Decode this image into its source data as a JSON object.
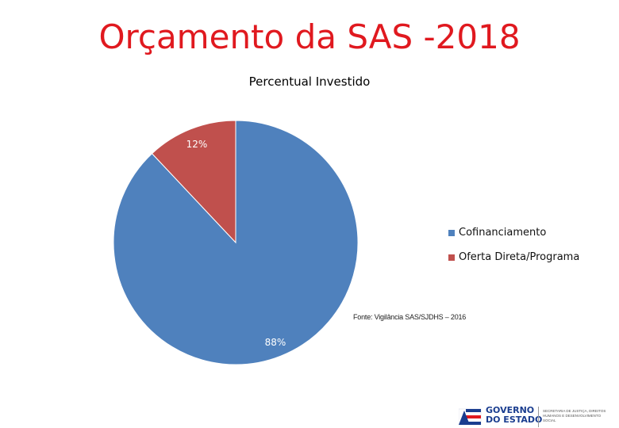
{
  "slide": {
    "title": "Orçamento da SAS -2018"
  },
  "chart_data": {
    "type": "pie",
    "title": "Percentual Investido",
    "categories": [
      "Cofinanciamento",
      "Oferta Direta/Programa"
    ],
    "values": [
      88,
      12
    ],
    "data_labels": [
      "88%",
      "12%"
    ],
    "colors": [
      "#4f81bd",
      "#c0504d"
    ],
    "legend": "right"
  },
  "source": {
    "text": "Fonte: Vigilância SAS/SJDHS – 2016"
  },
  "footer_logo": {
    "gov_line1": "GOVERNO",
    "gov_line2": "DO ESTADO",
    "secretaria": "SECRETARIA DE JUSTIÇA, DIREITOS HUMANOS E DESENVOLVIMENTO SOCIAL"
  }
}
